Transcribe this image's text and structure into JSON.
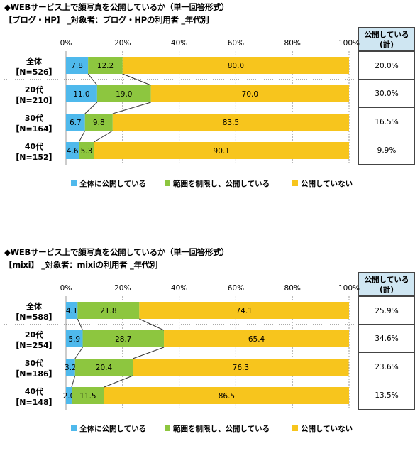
{
  "colors": {
    "public_all": "#4fb9ec",
    "limited": "#8dc63f",
    "not_public": "#f7c51d",
    "side_header_bg": "#cfe6f2"
  },
  "chart_data": [
    {
      "type": "bar",
      "orientation": "horizontal-stacked-100",
      "title": "◆WEBサービス上で顔写真を公開しているか（単一回答形式）",
      "subtitle": "【ブログ・HP】 _対象者：ブログ・HPの利用者 _年代別",
      "xlim": [
        0,
        100
      ],
      "x_ticks": [
        "0%",
        "20%",
        "40%",
        "60%",
        "80%",
        "100%"
      ],
      "categories": [
        [
          "全体",
          "【N=526】"
        ],
        [
          "20代",
          "【N=210】"
        ],
        [
          "30代",
          "【N=164】"
        ],
        [
          "40代",
          "【N=152】"
        ]
      ],
      "series": [
        {
          "name": "全体に公開している",
          "values": [
            7.8,
            11.0,
            6.7,
            4.6
          ]
        },
        {
          "name": "範囲を制限し、公開している",
          "values": [
            12.2,
            19.0,
            9.8,
            5.3
          ]
        },
        {
          "name": "公開していない",
          "values": [
            80.0,
            70.0,
            83.5,
            90.1
          ]
        }
      ],
      "side_table": {
        "header": [
          "公開している",
          "(計)"
        ],
        "values": [
          "20.0%",
          "30.0%",
          "16.5%",
          "9.9%"
        ]
      }
    },
    {
      "type": "bar",
      "orientation": "horizontal-stacked-100",
      "title": "◆WEBサービス上で顔写真を公開しているか（単一回答形式）",
      "subtitle": "【mixi】 _対象者：mixiの利用者 _年代別",
      "xlim": [
        0,
        100
      ],
      "x_ticks": [
        "0%",
        "20%",
        "40%",
        "60%",
        "80%",
        "100%"
      ],
      "categories": [
        [
          "全体",
          "【N=588】"
        ],
        [
          "20代",
          "【N=254】"
        ],
        [
          "30代",
          "【N=186】"
        ],
        [
          "40代",
          "【N=148】"
        ]
      ],
      "series": [
        {
          "name": "全体に公開している",
          "values": [
            4.1,
            5.9,
            3.2,
            2.0
          ]
        },
        {
          "name": "範囲を制限し、公開している",
          "values": [
            21.8,
            28.7,
            20.4,
            11.5
          ]
        },
        {
          "name": "公開していない",
          "values": [
            74.1,
            65.4,
            76.3,
            86.5
          ]
        }
      ],
      "side_table": {
        "header": [
          "公開している",
          "(計)"
        ],
        "values": [
          "25.9%",
          "34.6%",
          "23.6%",
          "13.5%"
        ]
      }
    }
  ]
}
